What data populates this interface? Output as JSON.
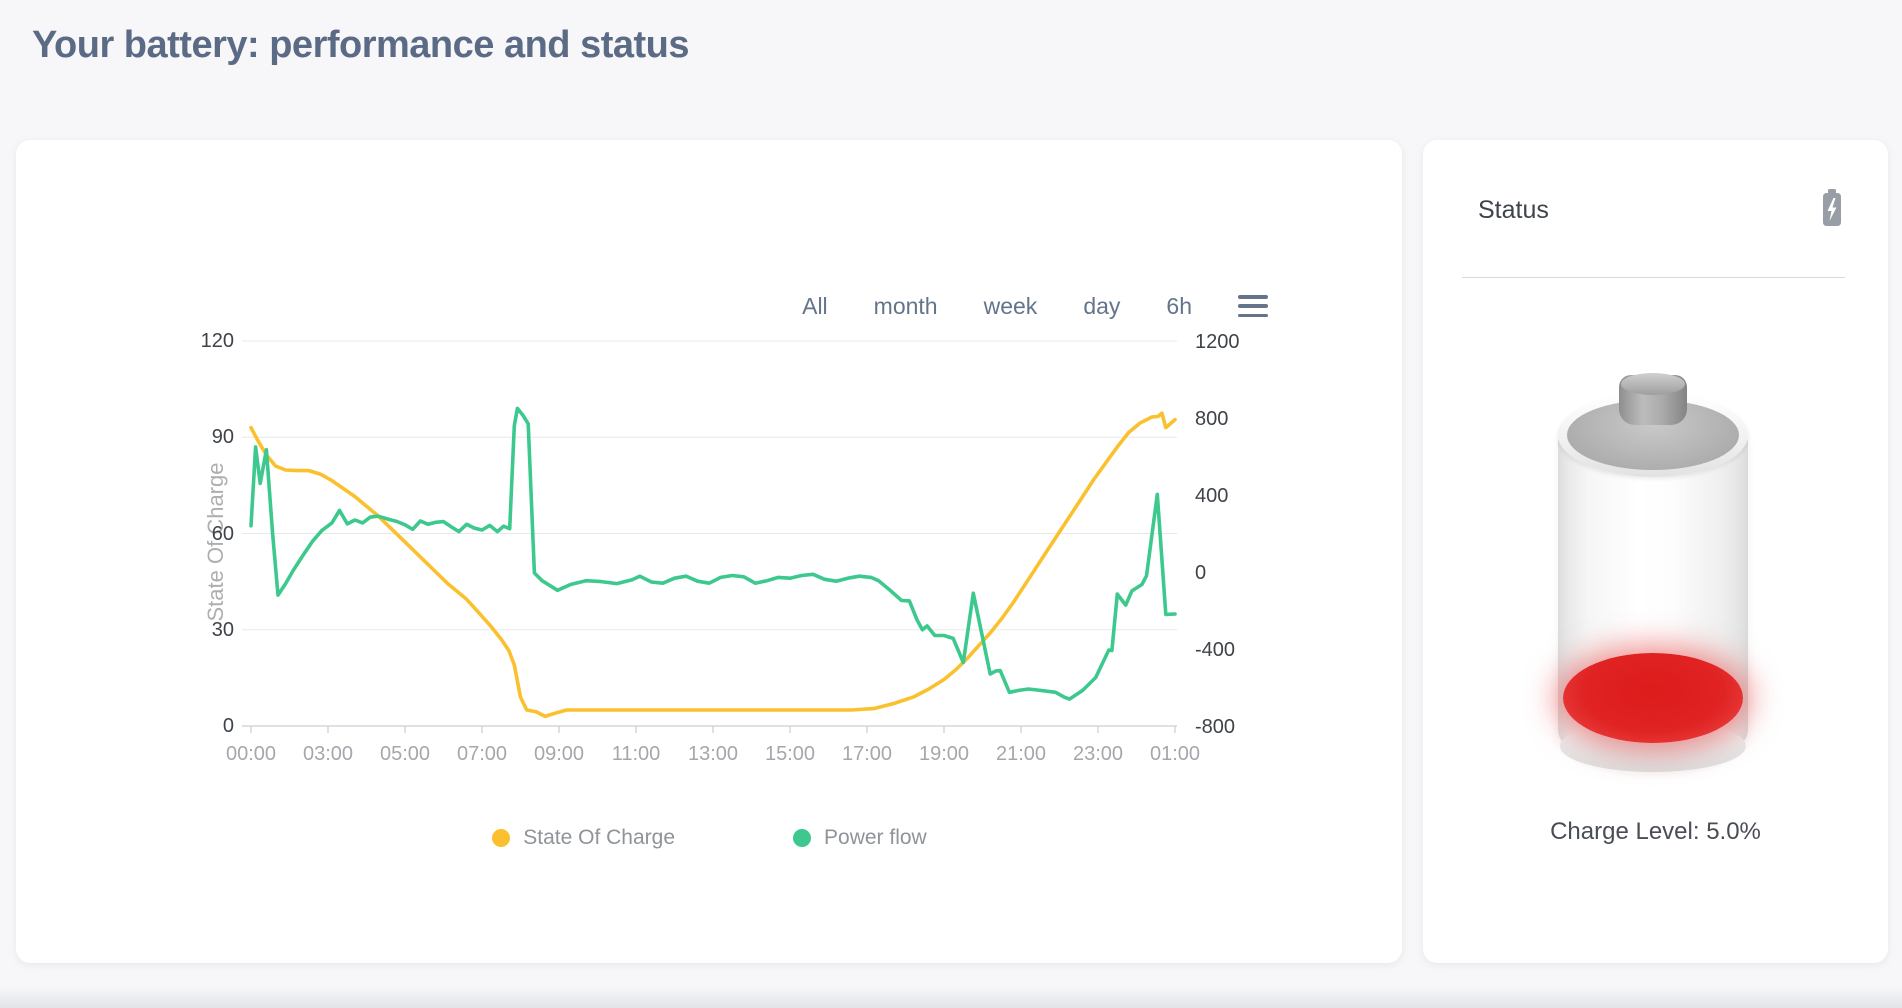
{
  "page": {
    "title": "Your battery: performance and status"
  },
  "chart_card": {
    "range_buttons": [
      "All",
      "month",
      "week",
      "day",
      "6h"
    ],
    "y_left_title": "State Of Charge"
  },
  "chart_data": {
    "type": "line",
    "x_axis_labels": [
      "00:00",
      "03:00",
      "05:00",
      "07:00",
      "09:00",
      "11:00",
      "13:00",
      "15:00",
      "17:00",
      "19:00",
      "21:00",
      "23:00",
      "01:00"
    ],
    "x_range": [
      0,
      12
    ],
    "grid": true,
    "legend_position": "bottom",
    "y_left": {
      "title": "State Of Charge",
      "ticks": [
        120,
        90,
        60,
        30,
        0
      ],
      "range": [
        0,
        120
      ]
    },
    "y_right": {
      "ticks": [
        1200,
        800,
        400,
        0,
        -400,
        -800
      ],
      "range": [
        -800,
        1200
      ]
    },
    "series": [
      {
        "name": "State Of Charge",
        "axis": "left",
        "color": "#FBC02D",
        "points": [
          [
            0,
            93
          ],
          [
            0.1,
            88.5
          ],
          [
            0.2,
            84.5
          ],
          [
            0.32,
            81
          ],
          [
            0.45,
            79.8
          ],
          [
            0.6,
            79.6
          ],
          [
            0.75,
            79.6
          ],
          [
            0.9,
            78.5
          ],
          [
            1.05,
            76.5
          ],
          [
            1.2,
            74
          ],
          [
            1.35,
            71.5
          ],
          [
            1.5,
            68.5
          ],
          [
            1.65,
            65.5
          ],
          [
            1.8,
            62
          ],
          [
            1.95,
            58.5
          ],
          [
            2.1,
            55
          ],
          [
            2.25,
            51.5
          ],
          [
            2.4,
            48
          ],
          [
            2.55,
            44.5
          ],
          [
            2.7,
            41.5
          ],
          [
            2.8,
            39.5
          ],
          [
            2.95,
            35.5
          ],
          [
            3.1,
            31.5
          ],
          [
            3.25,
            27
          ],
          [
            3.35,
            23.5
          ],
          [
            3.42,
            19
          ],
          [
            3.5,
            9
          ],
          [
            3.58,
            5
          ],
          [
            3.7,
            4.5
          ],
          [
            3.82,
            3
          ],
          [
            3.95,
            4
          ],
          [
            4.1,
            5
          ],
          [
            4.3,
            5
          ],
          [
            4.6,
            5
          ],
          [
            5,
            5
          ],
          [
            5.4,
            5
          ],
          [
            5.8,
            5
          ],
          [
            6.2,
            5
          ],
          [
            6.6,
            5
          ],
          [
            7,
            5
          ],
          [
            7.4,
            5
          ],
          [
            7.8,
            5
          ],
          [
            8.1,
            5.5
          ],
          [
            8.35,
            7
          ],
          [
            8.6,
            9
          ],
          [
            8.8,
            11.5
          ],
          [
            9,
            14.5
          ],
          [
            9.15,
            17.5
          ],
          [
            9.3,
            21
          ],
          [
            9.45,
            25
          ],
          [
            9.6,
            29
          ],
          [
            9.75,
            33.5
          ],
          [
            9.9,
            38.5
          ],
          [
            10.05,
            44
          ],
          [
            10.2,
            49.5
          ],
          [
            10.35,
            55
          ],
          [
            10.5,
            60.5
          ],
          [
            10.65,
            66
          ],
          [
            10.8,
            71.5
          ],
          [
            10.95,
            77
          ],
          [
            11.1,
            82
          ],
          [
            11.25,
            87
          ],
          [
            11.4,
            91.5
          ],
          [
            11.55,
            94.5
          ],
          [
            11.7,
            96.3
          ],
          [
            11.78,
            96.5
          ],
          [
            11.83,
            97.5
          ],
          [
            11.88,
            93
          ],
          [
            12,
            95.5
          ]
        ]
      },
      {
        "name": "Power flow",
        "axis": "right",
        "color": "#3DC98E",
        "points": [
          [
            0,
            240
          ],
          [
            0.06,
            650
          ],
          [
            0.12,
            460
          ],
          [
            0.2,
            635
          ],
          [
            0.28,
            200
          ],
          [
            0.35,
            -120
          ],
          [
            0.45,
            -60
          ],
          [
            0.55,
            10
          ],
          [
            0.68,
            90
          ],
          [
            0.8,
            160
          ],
          [
            0.92,
            215
          ],
          [
            1.05,
            255
          ],
          [
            1.15,
            320
          ],
          [
            1.25,
            250
          ],
          [
            1.35,
            270
          ],
          [
            1.45,
            255
          ],
          [
            1.55,
            285
          ],
          [
            1.65,
            290
          ],
          [
            1.78,
            275
          ],
          [
            1.9,
            262
          ],
          [
            2,
            245
          ],
          [
            2.1,
            222
          ],
          [
            2.2,
            265
          ],
          [
            2.3,
            248
          ],
          [
            2.4,
            258
          ],
          [
            2.5,
            262
          ],
          [
            2.6,
            235
          ],
          [
            2.7,
            210
          ],
          [
            2.8,
            248
          ],
          [
            2.9,
            228
          ],
          [
            3,
            218
          ],
          [
            3.1,
            242
          ],
          [
            3.2,
            210
          ],
          [
            3.28,
            238
          ],
          [
            3.36,
            225
          ],
          [
            3.42,
            760
          ],
          [
            3.46,
            850
          ],
          [
            3.53,
            815
          ],
          [
            3.6,
            770
          ],
          [
            3.68,
            -5
          ],
          [
            3.78,
            -45
          ],
          [
            3.98,
            -95
          ],
          [
            4.15,
            -65
          ],
          [
            4.35,
            -45
          ],
          [
            4.55,
            -50
          ],
          [
            4.75,
            -60
          ],
          [
            4.95,
            -40
          ],
          [
            5.05,
            -22
          ],
          [
            5.2,
            -52
          ],
          [
            5.35,
            -58
          ],
          [
            5.5,
            -32
          ],
          [
            5.65,
            -22
          ],
          [
            5.8,
            -48
          ],
          [
            5.95,
            -58
          ],
          [
            6.1,
            -28
          ],
          [
            6.25,
            -18
          ],
          [
            6.4,
            -25
          ],
          [
            6.55,
            -58
          ],
          [
            6.7,
            -45
          ],
          [
            6.85,
            -28
          ],
          [
            7,
            -32
          ],
          [
            7.15,
            -18
          ],
          [
            7.3,
            -12
          ],
          [
            7.45,
            -38
          ],
          [
            7.6,
            -48
          ],
          [
            7.75,
            -32
          ],
          [
            7.9,
            -22
          ],
          [
            8.05,
            -28
          ],
          [
            8.15,
            -45
          ],
          [
            8.3,
            -95
          ],
          [
            8.45,
            -148
          ],
          [
            8.55,
            -150
          ],
          [
            8.65,
            -250
          ],
          [
            8.72,
            -300
          ],
          [
            8.78,
            -280
          ],
          [
            8.88,
            -330
          ],
          [
            9,
            -330
          ],
          [
            9.12,
            -345
          ],
          [
            9.25,
            -470
          ],
          [
            9.38,
            -110
          ],
          [
            9.6,
            -530
          ],
          [
            9.67,
            -515
          ],
          [
            9.73,
            -512
          ],
          [
            9.85,
            -625
          ],
          [
            9.97,
            -615
          ],
          [
            10.1,
            -608
          ],
          [
            10.25,
            -615
          ],
          [
            10.45,
            -625
          ],
          [
            10.56,
            -650
          ],
          [
            10.63,
            -660
          ],
          [
            10.8,
            -615
          ],
          [
            10.97,
            -548
          ],
          [
            11.14,
            -405
          ],
          [
            11.18,
            -408
          ],
          [
            11.25,
            -115
          ],
          [
            11.36,
            -172
          ],
          [
            11.44,
            -98
          ],
          [
            11.57,
            -65
          ],
          [
            11.63,
            -20
          ],
          [
            11.77,
            403
          ],
          [
            11.88,
            -220
          ],
          [
            12,
            -218
          ]
        ]
      }
    ]
  },
  "status_card": {
    "title": "Status",
    "battery_icon": "battery-charging-icon",
    "charge_label": "Charge Level: 5.0%",
    "charge_percent": 5.0,
    "level_color": "#e02323"
  }
}
